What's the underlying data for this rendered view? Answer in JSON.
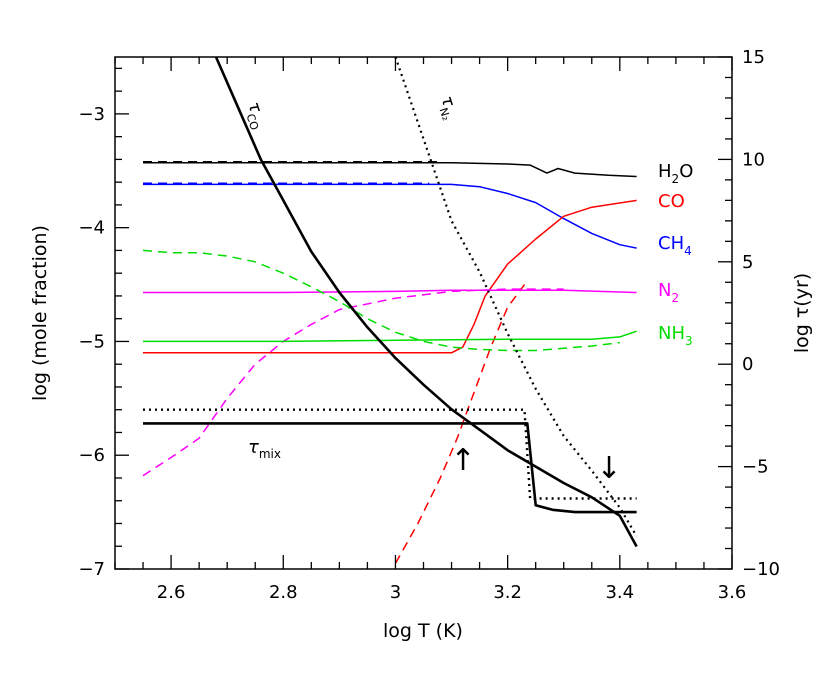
{
  "chart_data": {
    "type": "line",
    "xlabel": "log T (K)",
    "ylabel_left": "log (mole fraction)",
    "ylabel_right": "log τ(yr)",
    "xlim": [
      2.5,
      3.6
    ],
    "ylim_left": [
      -7,
      -2.5
    ],
    "ylim_right": [
      -10,
      15
    ],
    "x_ticks": [
      "2.6",
      "2.8",
      "3",
      "3.2",
      "3.4",
      "3.6"
    ],
    "y_ticks_left": [
      "−7",
      "−6",
      "−5",
      "−4",
      "−3"
    ],
    "y_ticks_right": [
      "−10",
      "−5",
      "0",
      "5",
      "10",
      "15"
    ],
    "colors": {
      "h2o": "#000000",
      "co": "#ff0000",
      "ch4": "#0000ff",
      "n2": "#ff00ff",
      "nh3": "#00dd00",
      "tau": "#000000"
    },
    "species_labels": {
      "h2o": {
        "base": "H",
        "sub": "2",
        "tail": "O"
      },
      "co": {
        "base": "CO",
        "sub": "",
        "tail": ""
      },
      "ch4": {
        "base": "CH",
        "sub": "4",
        "tail": ""
      },
      "n2": {
        "base": "N",
        "sub": "2",
        "tail": ""
      },
      "nh3": {
        "base": "NH",
        "sub": "3",
        "tail": ""
      }
    },
    "annotations": {
      "tau_co": {
        "sym": "τ",
        "sub": "CO"
      },
      "tau_n2": {
        "sym": "τ",
        "sub": "N₂"
      },
      "tau_mix": {
        "sym": "τ",
        "sub": "mix"
      },
      "arrow_up": "↑",
      "arrow_down": "↓"
    },
    "series": [
      {
        "key": "h2o",
        "style": "solid",
        "axis": "left",
        "points": [
          [
            2.55,
            -3.43
          ],
          [
            2.9,
            -3.43
          ],
          [
            3.1,
            -3.43
          ],
          [
            3.2,
            -3.44
          ],
          [
            3.24,
            -3.45
          ],
          [
            3.27,
            -3.52
          ],
          [
            3.29,
            -3.48
          ],
          [
            3.32,
            -3.52
          ],
          [
            3.38,
            -3.54
          ],
          [
            3.43,
            -3.55
          ]
        ]
      },
      {
        "key": "h2o",
        "style": "dashed",
        "axis": "left",
        "points": [
          [
            2.55,
            -3.42
          ],
          [
            3.08,
            -3.42
          ]
        ]
      },
      {
        "key": "ch4",
        "style": "solid",
        "axis": "left",
        "points": [
          [
            2.55,
            -3.62
          ],
          [
            3.0,
            -3.62
          ],
          [
            3.1,
            -3.62
          ],
          [
            3.15,
            -3.64
          ],
          [
            3.2,
            -3.7
          ],
          [
            3.25,
            -3.78
          ],
          [
            3.3,
            -3.92
          ],
          [
            3.35,
            -4.05
          ],
          [
            3.4,
            -4.15
          ],
          [
            3.43,
            -4.18
          ]
        ]
      },
      {
        "key": "ch4",
        "style": "dashed",
        "axis": "left",
        "points": [
          [
            2.55,
            -3.61
          ],
          [
            3.06,
            -3.61
          ]
        ]
      },
      {
        "key": "co",
        "style": "solid",
        "axis": "left",
        "points": [
          [
            2.55,
            -5.1
          ],
          [
            3.0,
            -5.1
          ],
          [
            3.1,
            -5.1
          ],
          [
            3.12,
            -5.05
          ],
          [
            3.14,
            -4.85
          ],
          [
            3.16,
            -4.6
          ],
          [
            3.2,
            -4.32
          ],
          [
            3.25,
            -4.1
          ],
          [
            3.3,
            -3.9
          ],
          [
            3.35,
            -3.82
          ],
          [
            3.43,
            -3.76
          ]
        ]
      },
      {
        "key": "co",
        "style": "dashed",
        "axis": "left",
        "points": [
          [
            3.0,
            -6.95
          ],
          [
            3.04,
            -6.6
          ],
          [
            3.08,
            -6.2
          ],
          [
            3.11,
            -5.85
          ],
          [
            3.14,
            -5.45
          ],
          [
            3.17,
            -5.05
          ],
          [
            3.2,
            -4.7
          ],
          [
            3.23,
            -4.5
          ]
        ]
      },
      {
        "key": "n2",
        "style": "solid",
        "axis": "left",
        "points": [
          [
            2.55,
            -4.57
          ],
          [
            2.8,
            -4.57
          ],
          [
            3.0,
            -4.56
          ],
          [
            3.1,
            -4.55
          ],
          [
            3.2,
            -4.55
          ],
          [
            3.3,
            -4.55
          ],
          [
            3.43,
            -4.57
          ]
        ]
      },
      {
        "key": "n2",
        "style": "dashed",
        "axis": "left",
        "points": [
          [
            2.55,
            -6.18
          ],
          [
            2.6,
            -6.02
          ],
          [
            2.65,
            -5.85
          ],
          [
            2.7,
            -5.5
          ],
          [
            2.75,
            -5.2
          ],
          [
            2.8,
            -5.0
          ],
          [
            2.85,
            -4.85
          ],
          [
            2.9,
            -4.72
          ],
          [
            3.0,
            -4.62
          ],
          [
            3.1,
            -4.56
          ],
          [
            3.2,
            -4.54
          ],
          [
            3.3,
            -4.54
          ]
        ]
      },
      {
        "key": "nh3",
        "style": "solid",
        "axis": "left",
        "points": [
          [
            2.55,
            -5.0
          ],
          [
            2.8,
            -5.0
          ],
          [
            3.0,
            -4.99
          ],
          [
            3.2,
            -4.98
          ],
          [
            3.35,
            -4.98
          ],
          [
            3.4,
            -4.96
          ],
          [
            3.43,
            -4.91
          ]
        ]
      },
      {
        "key": "nh3",
        "style": "dashed",
        "axis": "left",
        "points": [
          [
            2.55,
            -4.2
          ],
          [
            2.6,
            -4.22
          ],
          [
            2.65,
            -4.22
          ],
          [
            2.7,
            -4.25
          ],
          [
            2.75,
            -4.3
          ],
          [
            2.8,
            -4.4
          ],
          [
            2.85,
            -4.52
          ],
          [
            2.9,
            -4.65
          ],
          [
            2.95,
            -4.8
          ],
          [
            3.0,
            -4.92
          ],
          [
            3.05,
            -5.0
          ],
          [
            3.1,
            -5.05
          ],
          [
            3.15,
            -5.07
          ],
          [
            3.2,
            -5.08
          ],
          [
            3.25,
            -5.08
          ],
          [
            3.3,
            -5.06
          ],
          [
            3.35,
            -5.04
          ],
          [
            3.4,
            -5.01
          ]
        ]
      },
      {
        "key": "tau_co",
        "style": "solid-thick",
        "axis": "right",
        "points": [
          [
            2.68,
            15.0
          ],
          [
            2.72,
            12.5
          ],
          [
            2.76,
            10.0
          ],
          [
            2.8,
            8.0
          ],
          [
            2.85,
            5.5
          ],
          [
            2.9,
            3.5
          ],
          [
            2.95,
            1.8
          ],
          [
            3.0,
            0.3
          ],
          [
            3.05,
            -1.0
          ],
          [
            3.1,
            -2.2
          ],
          [
            3.15,
            -3.2
          ],
          [
            3.2,
            -4.2
          ],
          [
            3.25,
            -5.0
          ],
          [
            3.3,
            -5.8
          ],
          [
            3.35,
            -6.5
          ],
          [
            3.4,
            -7.4
          ],
          [
            3.43,
            -8.9
          ]
        ]
      },
      {
        "key": "tau_n2",
        "style": "dotted",
        "axis": "right",
        "points": [
          [
            3.0,
            15.0
          ],
          [
            3.05,
            11.0
          ],
          [
            3.1,
            7.0
          ],
          [
            3.15,
            4.5
          ],
          [
            3.2,
            1.5
          ],
          [
            3.25,
            -1.2
          ],
          [
            3.3,
            -3.5
          ],
          [
            3.35,
            -5.2
          ],
          [
            3.4,
            -7.0
          ],
          [
            3.43,
            -8.4
          ]
        ]
      },
      {
        "key": "tau_mix",
        "style": "solid-thick",
        "axis": "left",
        "points": [
          [
            2.55,
            -5.72
          ],
          [
            3.235,
            -5.72
          ],
          [
            3.25,
            -6.44
          ],
          [
            3.28,
            -6.48
          ],
          [
            3.32,
            -6.5
          ],
          [
            3.43,
            -6.5
          ]
        ]
      },
      {
        "key": "tau_mix_alt",
        "style": "dotted-thick",
        "axis": "left",
        "points": [
          [
            2.55,
            -5.6
          ],
          [
            3.23,
            -5.6
          ],
          [
            3.24,
            -6.38
          ],
          [
            3.43,
            -6.38
          ]
        ]
      }
    ]
  }
}
